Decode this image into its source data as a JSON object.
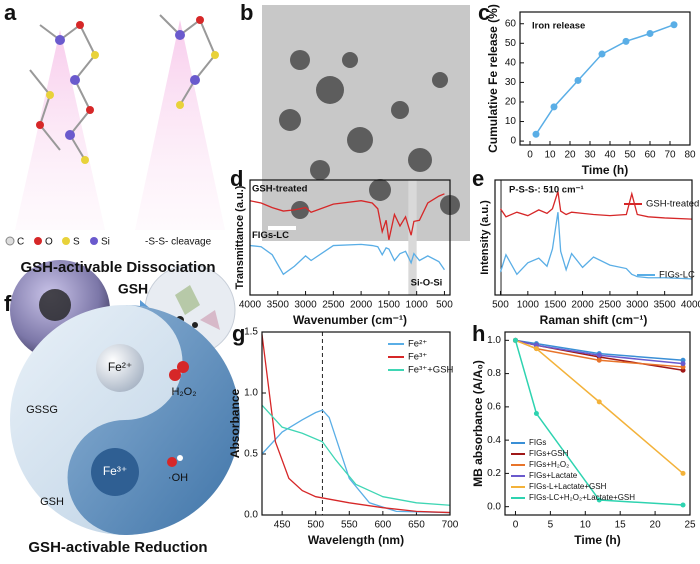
{
  "panel_labels": [
    "a",
    "b",
    "c",
    "d",
    "e",
    "f",
    "g",
    "h"
  ],
  "panel_a": {
    "legend": [
      "C",
      "O",
      "S",
      "Si"
    ],
    "cleavage": "-S-S- cleavage",
    "arrow_label": "GSH",
    "caption": "GSH-activable Dissociation"
  },
  "panel_f": {
    "gssg": "GSSG",
    "fe2": "Fe²⁺",
    "h2o2": "H₂O₂",
    "gsh": "GSH",
    "fe3": "Fe³⁺",
    "oh": "·OH",
    "caption": "GSH-activable Reduction"
  },
  "chart_data": [
    {
      "type": "line",
      "x_label": "Time (h)",
      "y_label": "Cumulative Fe release (%)",
      "annotation": "Iron release",
      "markers": true,
      "x": [
        3,
        12,
        24,
        36,
        48,
        60,
        72
      ],
      "series": [
        {
          "color": "#5aaee6",
          "values": [
            3.5,
            17.5,
            31,
            44.5,
            51,
            55,
            59.5
          ]
        }
      ],
      "xlim": [
        -5,
        80
      ],
      "ylim": [
        -2,
        66
      ],
      "xticks": [
        0,
        10,
        20,
        30,
        40,
        50,
        60,
        70,
        80
      ],
      "yticks": [
        0,
        10,
        20,
        30,
        40,
        50,
        60
      ]
    },
    {
      "type": "line",
      "x_label": "Wavenumber (cm⁻¹)",
      "y_label": "Transmittance (a.u.)",
      "annotation": "Si-O-Si",
      "shaded_range": [
        1150,
        1000
      ],
      "x": [
        4000,
        3800,
        3600,
        3400,
        3200,
        3000,
        2900,
        2500,
        2000,
        1800,
        1700,
        1620,
        1550,
        1500,
        1400,
        1300,
        1200,
        1100,
        1050,
        950,
        800,
        600,
        500
      ],
      "series": [
        {
          "name": "GSH-treated",
          "color": "#d62728",
          "values": [
            8.2,
            8.0,
            7.6,
            7.3,
            7.4,
            7.6,
            7.2,
            7.9,
            8.2,
            8.0,
            7.5,
            5.5,
            6.5,
            4.8,
            7.0,
            6.0,
            6.8,
            5.2,
            6.4,
            6.5,
            8.0,
            8.6,
            8.8
          ]
        },
        {
          "name": "FIGs-LC",
          "color": "#5aaee6",
          "values": [
            4.3,
            4.2,
            3.5,
            1.8,
            2.5,
            3.4,
            3.0,
            4.3,
            4.4,
            4.3,
            4.2,
            3.5,
            4.1,
            4.0,
            3.0,
            3.6,
            3.8,
            2.8,
            3.6,
            3.0,
            3.4,
            2.9,
            2.2
          ]
        }
      ],
      "xlim": [
        4000,
        400
      ],
      "ylim": [
        0,
        10
      ],
      "xticks": [
        4000,
        3500,
        3000,
        2500,
        2000,
        1500,
        1000,
        500
      ]
    },
    {
      "type": "line",
      "x_label": "Raman shift (cm⁻¹)",
      "y_label": "Intensity (a.u.)",
      "annotation": "P-S-S-: 510 cm⁻¹",
      "marker_line": 510,
      "x": [
        500,
        600,
        800,
        1000,
        1200,
        1350,
        1450,
        1550,
        1600,
        1700,
        1800,
        2000,
        2200,
        2500,
        2800,
        2900,
        3000,
        3200,
        3500,
        4000
      ],
      "series": [
        {
          "name": "GSH-treated",
          "color": "#d62728",
          "values": [
            7.5,
            6.8,
            7.2,
            6.9,
            7.4,
            7.1,
            7.5,
            9.0,
            7.3,
            7.0,
            7.2,
            7.1,
            7.0,
            6.9,
            7.0,
            8.8,
            7.0,
            6.8,
            6.7,
            6.6
          ]
        },
        {
          "name": "FIGs-LC",
          "color": "#5aaee6",
          "values": [
            2.0,
            3.5,
            1.8,
            2.8,
            3.2,
            2.5,
            4.0,
            7.2,
            3.8,
            2.2,
            3.6,
            2.4,
            3.3,
            2.6,
            2.3,
            1.8,
            1.6,
            1.5,
            1.5,
            1.4
          ]
        }
      ],
      "xlim": [
        400,
        4000
      ],
      "ylim": [
        0,
        10
      ],
      "xticks": [
        500,
        1000,
        1500,
        2000,
        2500,
        3000,
        3500,
        4000
      ]
    },
    {
      "type": "xyline",
      "x_label": "Wavelength (nm)",
      "y_label": "Absorbance",
      "marker_line": 510,
      "series": [
        {
          "name": "Fe²⁺",
          "color": "#5aaee6",
          "x": [
            420,
            450,
            480,
            500,
            510,
            520,
            550,
            580,
            620,
            700
          ],
          "values": [
            0.5,
            0.68,
            0.78,
            0.84,
            0.86,
            0.8,
            0.3,
            0.1,
            0.03,
            0.02
          ]
        },
        {
          "name": "Fe³⁺",
          "color": "#d62728",
          "x": [
            420,
            440,
            460,
            480,
            500,
            550,
            600,
            650,
            700
          ],
          "values": [
            1.48,
            0.6,
            0.3,
            0.2,
            0.15,
            0.1,
            0.06,
            0.03,
            0.02
          ]
        },
        {
          "name": "Fe³⁺+GSH",
          "color": "#3fd6b4",
          "x": [
            420,
            450,
            480,
            510,
            530,
            560,
            600,
            650,
            700
          ],
          "values": [
            0.9,
            0.72,
            0.67,
            0.6,
            0.45,
            0.25,
            0.15,
            0.1,
            0.08
          ]
        }
      ],
      "xlim": [
        420,
        700
      ],
      "ylim": [
        0,
        1.5
      ],
      "xticks": [
        450,
        500,
        550,
        600,
        650,
        700
      ],
      "yticks": [
        {
          "value": 0,
          "label": "0.0"
        },
        0.5,
        {
          "value": 1,
          "label": "1.0"
        },
        1.5
      ]
    },
    {
      "type": "line",
      "x_label": "Time (h)",
      "y_label": "MB absorbance (A/A₀)",
      "markers": true,
      "x": [
        0,
        3,
        12,
        24
      ],
      "series": [
        {
          "name": "FIGs",
          "color": "#3a8fd6",
          "values": [
            1,
            0.98,
            0.92,
            0.88
          ]
        },
        {
          "name": "FIGs+GSH",
          "color": "#a01818",
          "values": [
            1,
            0.97,
            0.9,
            0.82
          ]
        },
        {
          "name": "FIGs+H₂O₂",
          "color": "#e8742a",
          "values": [
            1,
            0.95,
            0.88,
            0.84
          ]
        },
        {
          "name": "FIGs+Lactate",
          "color": "#6a5acd",
          "values": [
            1,
            0.97,
            0.91,
            0.86
          ]
        },
        {
          "name": "FIGs-L+Lactate+GSH",
          "color": "#f3b23a",
          "values": [
            1,
            0.95,
            0.63,
            0.2
          ]
        },
        {
          "name": "FIGs-LC+H₂O₂+Lactate+GSH",
          "color": "#2ed3b0",
          "values": [
            1,
            0.56,
            0.04,
            0.01
          ]
        }
      ],
      "xlim": [
        -1.5,
        25
      ],
      "ylim": [
        -0.05,
        1.05
      ],
      "xticks": [
        0,
        5,
        10,
        15,
        20,
        25
      ],
      "yticks": [
        {
          "value": 0,
          "label": "0.0"
        },
        0.2,
        0.4,
        0.6,
        0.8,
        {
          "value": 1,
          "label": "1.0"
        }
      ]
    }
  ]
}
